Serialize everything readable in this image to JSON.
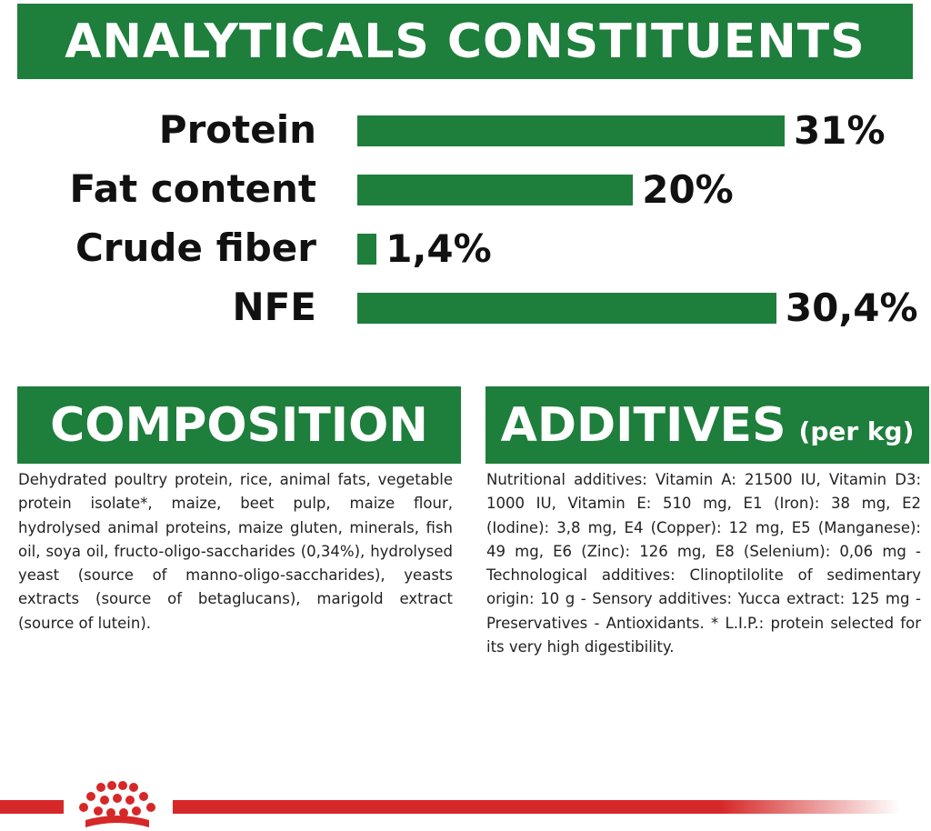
{
  "analytical": {
    "title": "ANALYTICALS CONSTITUENTS",
    "rows": [
      {
        "label": "Protein",
        "value_text": "31%",
        "value": 31
      },
      {
        "label": "Fat content",
        "value_text": "20%",
        "value": 20
      },
      {
        "label": "Crude fiber",
        "value_text": "1,4%",
        "value": 1.4
      },
      {
        "label": "NFE",
        "value_text": "30,4%",
        "value": 30.4
      }
    ]
  },
  "composition": {
    "title": "COMPOSITION",
    "text": "Dehydrated poultry protein, rice, animal fats, vegetable protein isolate*, maize, beet pulp, maize flour, hydrolysed animal proteins, maize gluten, minerals, fish oil, soya oil, fructo-oligo-saccharides (0,34%), hydrolysed yeast (source of manno-oligo-saccharides), yeasts extracts (source of betaglucans), marigold extract (source of lutein)."
  },
  "additives": {
    "title": "ADDITIVES",
    "subtitle": "(per kg)",
    "text": "Nutritional additives: Vitamin A: 21500 IU, Vitamin D3: 1000 IU, Vitamin E: 510 mg, E1 (Iron): 38 mg, E2 (Iodine): 3,8 mg, E4 (Copper): 12 mg, E5 (Manganese): 49 mg, E6 (Zinc): 126 mg, E8 (Selenium): 0,06 mg - Technological additives: Clinoptilolite of sedimentary origin: 10 g - Sensory additives: Yucca extract: 125 mg - Preservatives - Antioxidants. * L.I.P.: protein selected for its very high digestibility."
  },
  "colors": {
    "brand_green": "#1e7e3c",
    "brand_red": "#d62828"
  },
  "footer": {
    "logo_icon": "royal-canin-crown-icon"
  }
}
